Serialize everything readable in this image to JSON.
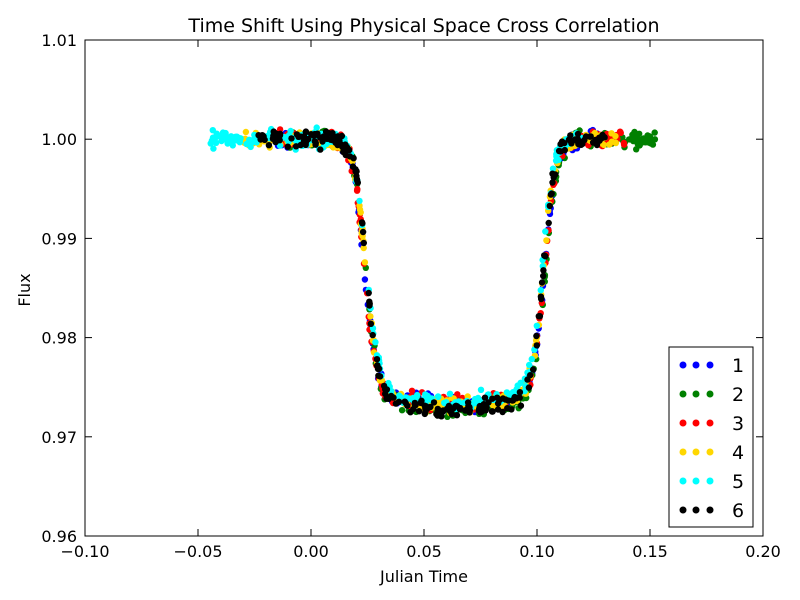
{
  "chart_data": {
    "type": "scatter",
    "title": "Time Shift Using Physical Space Cross Correlation",
    "xlabel": "Julian Time",
    "ylabel": "Flux",
    "xlim": [
      -0.1,
      0.2
    ],
    "ylim": [
      0.96,
      1.01
    ],
    "xticks": [
      -0.1,
      -0.05,
      0.0,
      0.05,
      0.1,
      0.15,
      0.2
    ],
    "xtick_labels": [
      "−0.10",
      "−0.05",
      "0.00",
      "0.05",
      "0.10",
      "0.15",
      "0.20"
    ],
    "yticks": [
      0.96,
      0.97,
      0.98,
      0.99,
      1.0,
      1.01
    ],
    "ytick_labels": [
      "0.96",
      "0.97",
      "0.98",
      "0.99",
      "1.00",
      "1.01"
    ],
    "grid": false,
    "legend_position": "lower-right",
    "series": [
      {
        "name": "1",
        "color": "#0000ff",
        "x_range": [
          -0.015,
          0.128
        ],
        "ingress": 0.0235,
        "egress": 0.1035,
        "depth": 0.0267
      },
      {
        "name": "2",
        "color": "#008000",
        "x_range": [
          -0.01,
          0.153
        ],
        "ingress": 0.024,
        "egress": 0.104,
        "depth": 0.0272
      },
      {
        "name": "3",
        "color": "#ff0000",
        "x_range": [
          -0.018,
          0.139
        ],
        "ingress": 0.0235,
        "egress": 0.1035,
        "depth": 0.0267
      },
      {
        "name": "4",
        "color": "#ffd700",
        "x_range": [
          -0.03,
          0.135
        ],
        "ingress": 0.024,
        "egress": 0.103,
        "depth": 0.0268
      },
      {
        "name": "5",
        "color": "#00ffff",
        "x_range": [
          -0.045,
          0.12
        ],
        "ingress": 0.0245,
        "egress": 0.1025,
        "depth": 0.0265
      },
      {
        "name": "6",
        "color": "#000000",
        "x_range": [
          -0.025,
          0.13
        ],
        "ingress": 0.0245,
        "egress": 0.103,
        "depth": 0.0272
      }
    ]
  }
}
